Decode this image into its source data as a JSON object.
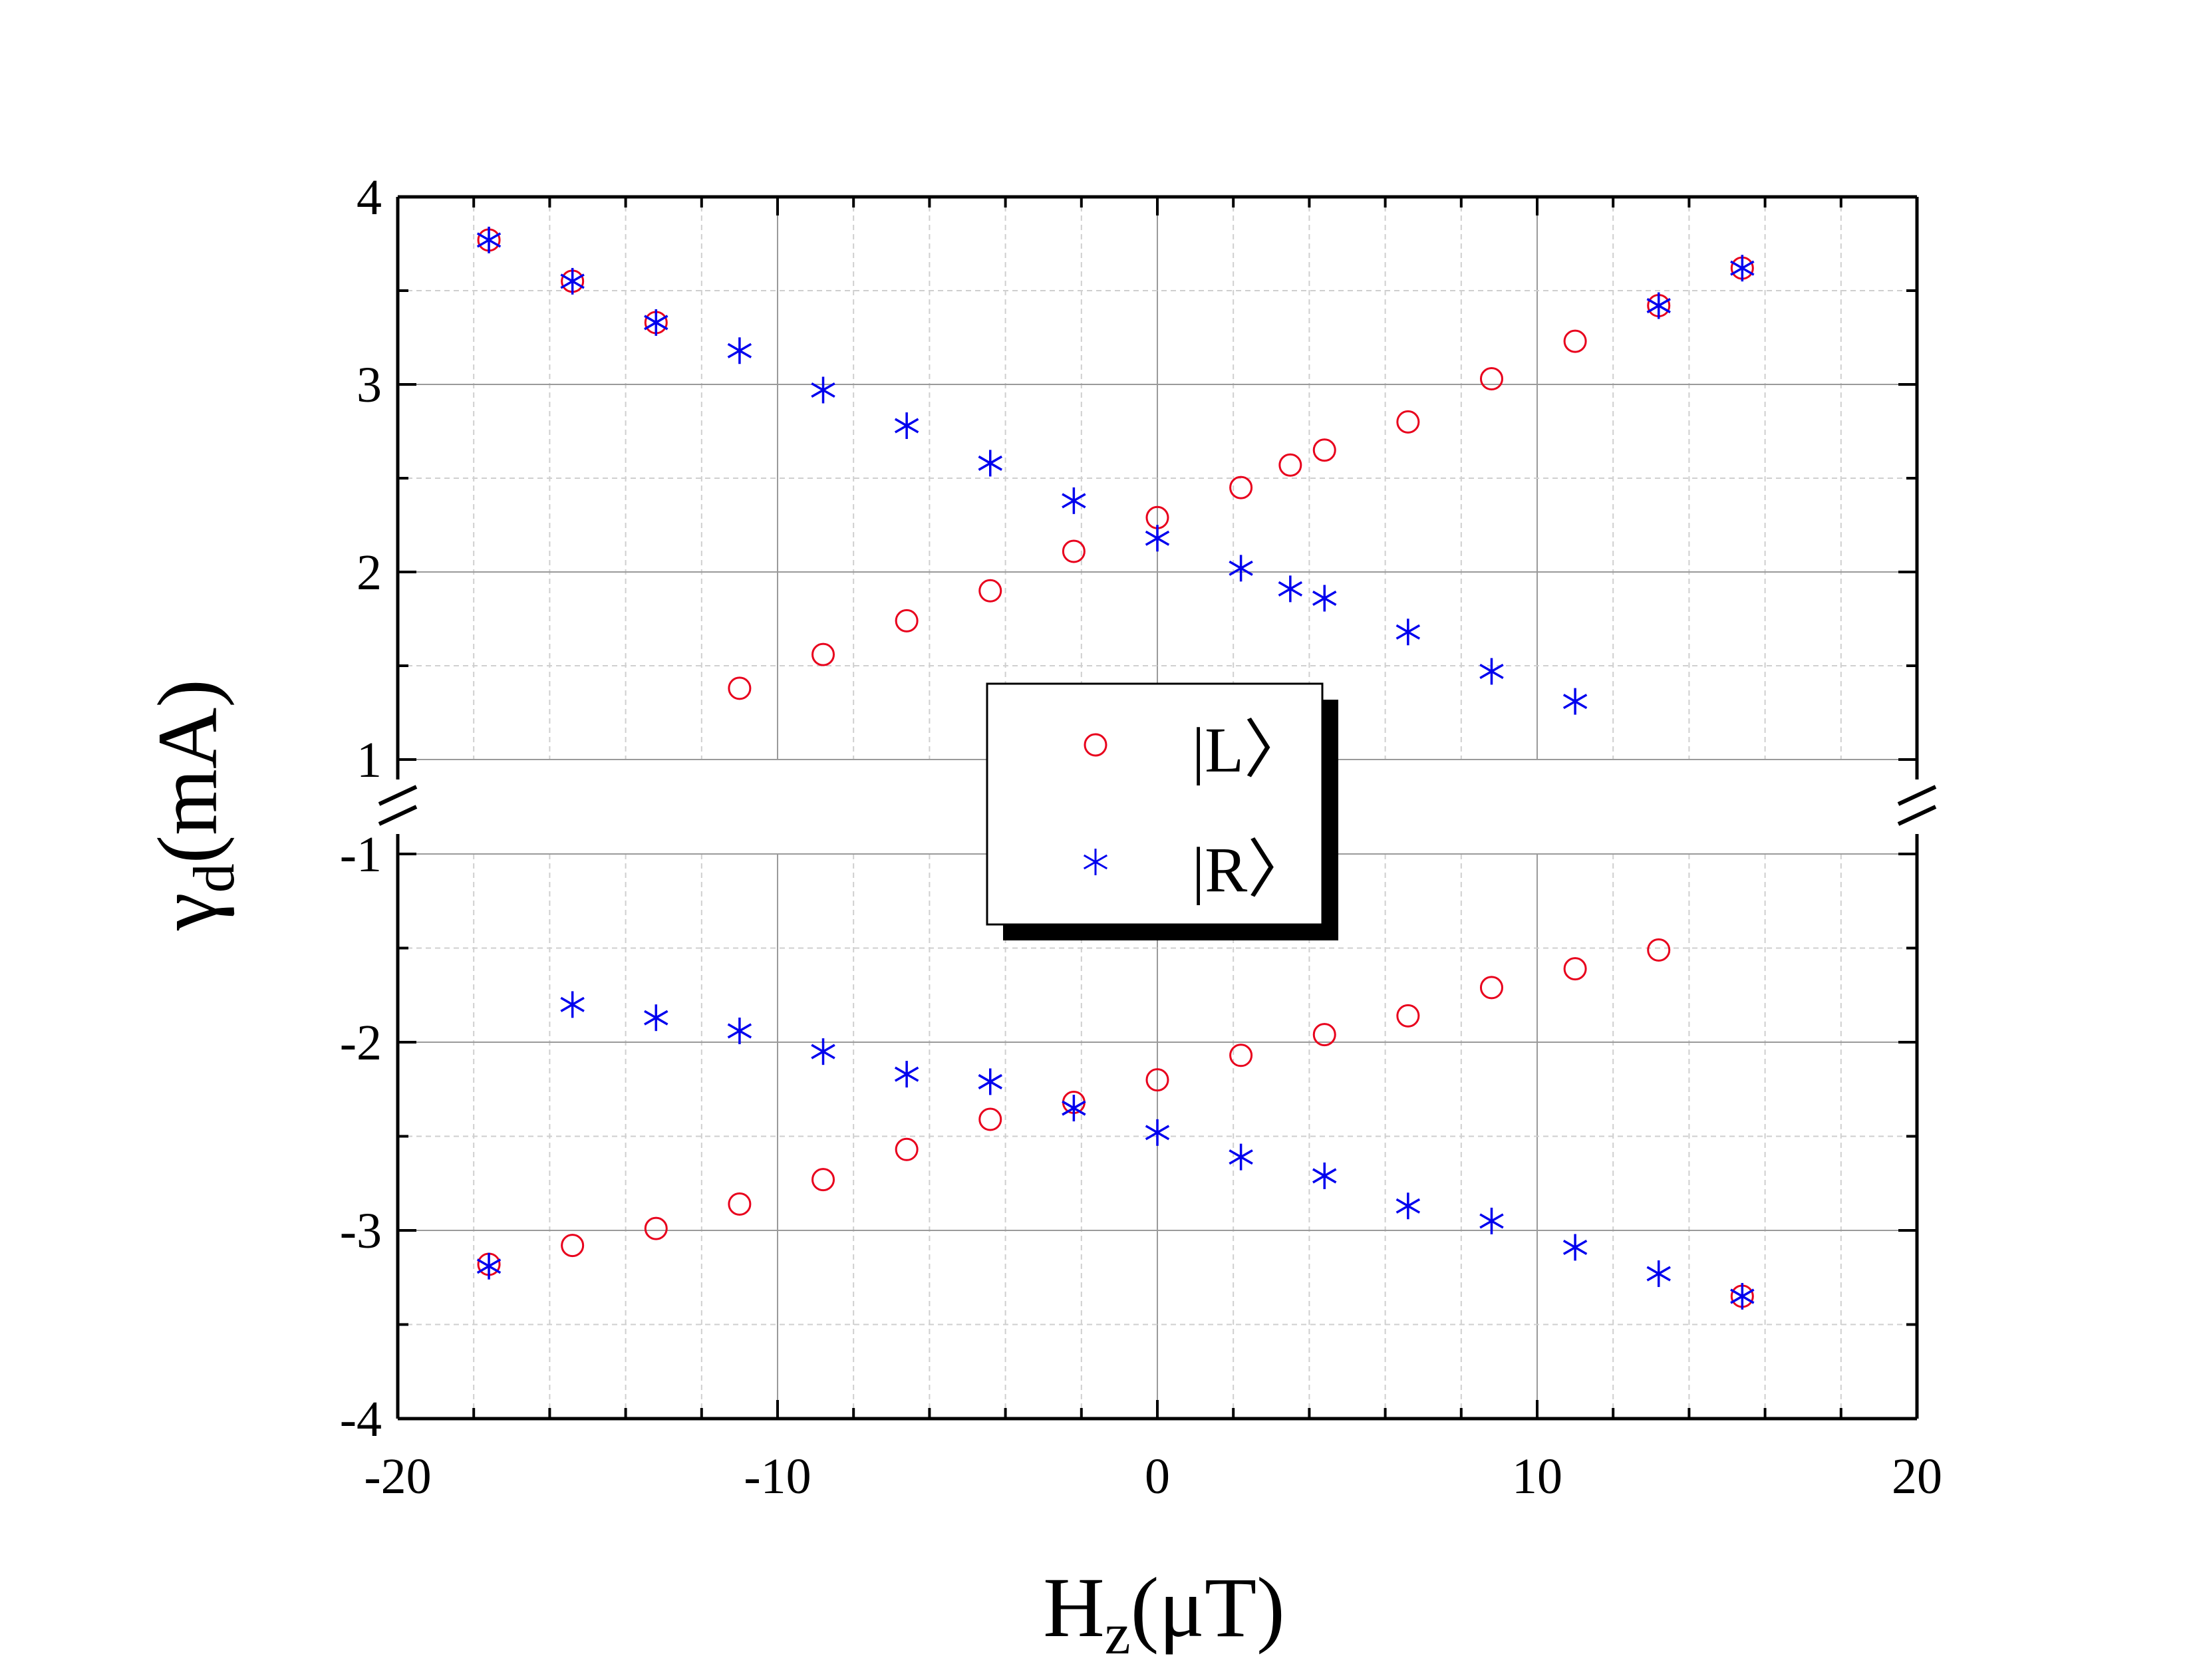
{
  "chart_data": {
    "type": "scatter",
    "title": "",
    "xlabel": "H",
    "xlabel_sub": "z",
    "xlabel_unit": "(μT)",
    "ylabel": "γ",
    "ylabel_sub": "d",
    "ylabel_unit": "(mA)",
    "xlim": [
      -20,
      20
    ],
    "x_ticks": [
      -20,
      -10,
      0,
      10,
      20
    ],
    "x_tick_labels": [
      "-20",
      "-10",
      "0",
      "10",
      "20"
    ],
    "y_break": {
      "lower_segment": [
        -4,
        -1
      ],
      "upper_segment": [
        1,
        4
      ]
    },
    "y_tick_labels_upper": [
      "1",
      "2",
      "3",
      "4"
    ],
    "y_tick_labels_lower": [
      "-4",
      "-3",
      "-2",
      "-1"
    ],
    "grid": true,
    "legend_position": "center",
    "series": [
      {
        "name": "|L>",
        "legend_label": "|L〉",
        "marker": "circle",
        "color": "#e8001c",
        "points": [
          [
            -17.6,
            3.77
          ],
          [
            -15.4,
            3.55
          ],
          [
            -13.2,
            3.33
          ],
          [
            -11.0,
            1.38
          ],
          [
            -8.8,
            1.56
          ],
          [
            -6.6,
            1.74
          ],
          [
            -4.4,
            1.9
          ],
          [
            -2.2,
            2.11
          ],
          [
            0.0,
            2.29
          ],
          [
            2.2,
            2.45
          ],
          [
            3.5,
            2.57
          ],
          [
            4.4,
            2.65
          ],
          [
            6.6,
            2.8
          ],
          [
            8.8,
            3.03
          ],
          [
            11.0,
            3.23
          ],
          [
            13.2,
            3.42
          ],
          [
            15.4,
            3.62
          ],
          [
            -17.6,
            -3.18
          ],
          [
            -15.4,
            -3.08
          ],
          [
            -13.2,
            -2.99
          ],
          [
            -11.0,
            -2.86
          ],
          [
            -8.8,
            -2.73
          ],
          [
            -6.6,
            -2.57
          ],
          [
            -4.4,
            -2.41
          ],
          [
            -2.2,
            -2.32
          ],
          [
            0.0,
            -2.2
          ],
          [
            2.2,
            -2.07
          ],
          [
            4.4,
            -1.96
          ],
          [
            6.6,
            -1.86
          ],
          [
            8.8,
            -1.71
          ],
          [
            11.0,
            -1.61
          ],
          [
            13.2,
            -1.51
          ],
          [
            15.4,
            -3.35
          ]
        ]
      },
      {
        "name": "|R>",
        "legend_label": "|R〉",
        "marker": "asterisk",
        "color": "#0000ee",
        "points": [
          [
            -17.6,
            3.77
          ],
          [
            -15.4,
            3.55
          ],
          [
            -13.2,
            3.33
          ],
          [
            -11.0,
            3.18
          ],
          [
            -8.8,
            2.97
          ],
          [
            -6.6,
            2.78
          ],
          [
            -4.4,
            2.58
          ],
          [
            -2.2,
            2.38
          ],
          [
            0.0,
            2.18
          ],
          [
            2.2,
            2.02
          ],
          [
            3.5,
            1.91
          ],
          [
            4.4,
            1.86
          ],
          [
            6.6,
            1.68
          ],
          [
            8.8,
            1.47
          ],
          [
            11.0,
            1.31
          ],
          [
            13.2,
            3.42
          ],
          [
            15.4,
            3.62
          ],
          [
            -17.6,
            -3.19
          ],
          [
            -15.4,
            -1.8
          ],
          [
            -13.2,
            -1.87
          ],
          [
            -11.0,
            -1.94
          ],
          [
            -8.8,
            -2.05
          ],
          [
            -6.6,
            -2.17
          ],
          [
            -4.4,
            -2.21
          ],
          [
            -2.2,
            -2.35
          ],
          [
            0.0,
            -2.48
          ],
          [
            2.2,
            -2.61
          ],
          [
            4.4,
            -2.71
          ],
          [
            6.6,
            -2.87
          ],
          [
            8.8,
            -2.95
          ],
          [
            11.0,
            -3.09
          ],
          [
            13.2,
            -3.23
          ],
          [
            15.4,
            -3.35
          ]
        ]
      }
    ]
  }
}
